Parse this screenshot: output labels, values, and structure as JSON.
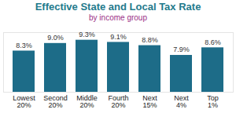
{
  "chart_data": {
    "type": "bar",
    "title": "Effective State and Local Tax Rate",
    "subtitle": "by income group",
    "categories": [
      "Lowest\n20%",
      "Second\n20%",
      "Middle\n20%",
      "Fourth\n20%",
      "Next\n15%",
      "Next\n4%",
      "Top\n1%"
    ],
    "values": [
      8.3,
      9.0,
      9.3,
      9.1,
      8.8,
      7.9,
      8.6
    ],
    "value_labels": [
      "8.3%",
      "9.0%",
      "9.3%",
      "9.1%",
      "8.8%",
      "7.9%",
      "8.6%"
    ],
    "color": "#1d6c88",
    "ylim": [
      4.5,
      10
    ],
    "yticks": [],
    "grid": false,
    "data_labels": true,
    "tick_labels": "x"
  }
}
